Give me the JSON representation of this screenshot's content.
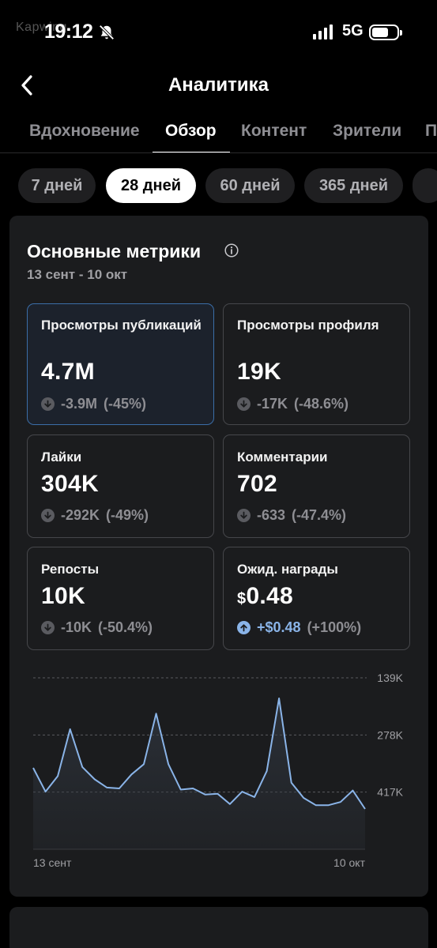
{
  "status_bar": {
    "watermark": "Kapwing",
    "time": "19:12",
    "network": "5G",
    "icons": [
      "bell-slash-icon",
      "signal-icon",
      "battery-icon"
    ]
  },
  "header": {
    "back_icon": "chevron-left-icon",
    "title": "Аналитика"
  },
  "tabs": [
    {
      "label": "Вдохновение",
      "active": false
    },
    {
      "label": "Обзор",
      "active": true
    },
    {
      "label": "Контент",
      "active": false
    },
    {
      "label": "Зрители",
      "active": false
    },
    {
      "label": "П",
      "active": false
    }
  ],
  "periods": [
    {
      "label": "7 дней",
      "active": false
    },
    {
      "label": "28 дней",
      "active": true
    },
    {
      "label": "60 дней",
      "active": false
    },
    {
      "label": "365 дней",
      "active": false
    },
    {
      "label": "",
      "active": false
    }
  ],
  "card": {
    "title": "Основные метрики",
    "info_icon": "info-circle-icon",
    "date_range": "13 сент - 10 окт",
    "metrics": [
      {
        "label": "Просмотры публикаций",
        "value": "4.7M",
        "currency": "",
        "delta_abs": "-3.9M",
        "delta_pct": "(-45%)",
        "direction": "down",
        "selected": true
      },
      {
        "label": "Просмотры профиля",
        "value": "19K",
        "currency": "",
        "delta_abs": "-17K",
        "delta_pct": "(-48.6%)",
        "direction": "down",
        "selected": false
      },
      {
        "label": "Лайки",
        "value": "304K",
        "currency": "",
        "delta_abs": "-292K",
        "delta_pct": "(-49%)",
        "direction": "down",
        "selected": false
      },
      {
        "label": "Комментарии",
        "value": "702",
        "currency": "",
        "delta_abs": "-633",
        "delta_pct": "(-47.4%)",
        "direction": "down",
        "selected": false
      },
      {
        "label": "Репосты",
        "value": "10K",
        "currency": "",
        "delta_abs": "-10K",
        "delta_pct": "(-50.4%)",
        "direction": "down",
        "selected": false
      },
      {
        "label": "Ожид. награды",
        "value": "0.48",
        "currency": "$",
        "delta_abs": "+$0.48",
        "delta_pct": "(+100%)",
        "direction": "up",
        "selected": false
      }
    ]
  },
  "colors": {
    "background": "#000000",
    "card": "#1b1c1e",
    "line": "#8ab4e8",
    "selected_border": "#3b6ea8"
  },
  "chart_data": {
    "type": "area",
    "title": "",
    "xlabel": "",
    "ylabel": "",
    "x_tick_labels": [
      "13 сент",
      "10 окт"
    ],
    "y_tick_labels": [
      "417K",
      "278K",
      "139K"
    ],
    "y_ticks": [
      139000,
      278000,
      417000
    ],
    "ylim": [
      0,
      417000
    ],
    "grid": true,
    "values": [
      198000,
      140000,
      178000,
      292000,
      200000,
      170000,
      150000,
      148000,
      182000,
      207000,
      330000,
      207000,
      145000,
      148000,
      133000,
      135000,
      110000,
      140000,
      127000,
      190000,
      367000,
      162000,
      125000,
      107000,
      107000,
      115000,
      143000,
      98000
    ]
  }
}
